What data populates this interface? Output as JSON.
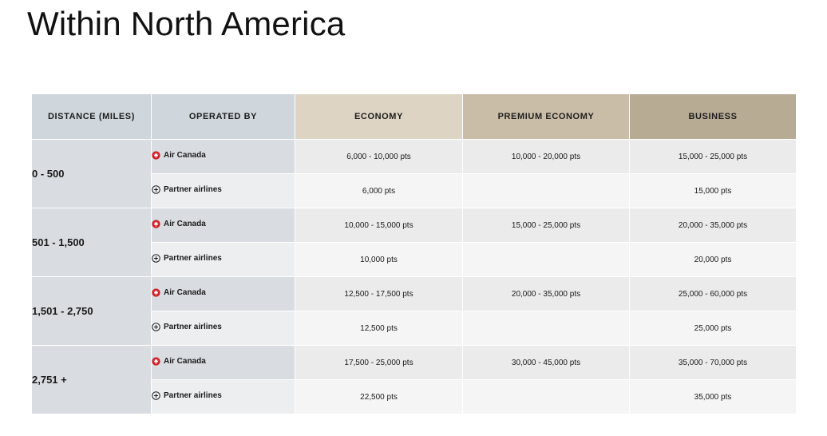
{
  "title": "Within North America",
  "colors": {
    "header_distance": "#cfd6dc",
    "header_operated": "#cfd6dc",
    "header_economy": "#ddd4c3",
    "header_premium": "#c9bda8",
    "header_business": "#b7ab94",
    "air_canada_red": "#d11f26"
  },
  "headers": {
    "distance": "DISTANCE (MILES)",
    "operated_by": "OPERATED BY",
    "economy": "ECONOMY",
    "premium_economy": "PREMIUM ECONOMY",
    "business": "BUSINESS"
  },
  "groups": [
    {
      "distance": "0 - 500",
      "air_canada": {
        "label": "Air Canada",
        "icon": "air-canada-maple-leaf-icon",
        "economy": "6,000 - 10,000 pts",
        "premium_economy": "10,000 - 20,000 pts",
        "business": "15,000 - 25,000 pts"
      },
      "partner": {
        "label": "Partner airlines",
        "icon": "partner-plus-circle-icon",
        "economy": "6,000 pts",
        "premium_economy": "",
        "business": "15,000 pts"
      }
    },
    {
      "distance": "501 - 1,500",
      "air_canada": {
        "label": "Air Canada",
        "icon": "air-canada-maple-leaf-icon",
        "economy": "10,000 - 15,000 pts",
        "premium_economy": "15,000 - 25,000 pts",
        "business": "20,000 - 35,000 pts"
      },
      "partner": {
        "label": "Partner airlines",
        "icon": "partner-plus-circle-icon",
        "economy": "10,000 pts",
        "premium_economy": "",
        "business": "20,000 pts"
      }
    },
    {
      "distance": "1,501 - 2,750",
      "air_canada": {
        "label": "Air Canada",
        "icon": "air-canada-maple-leaf-icon",
        "economy": "12,500 - 17,500 pts",
        "premium_economy": "20,000 - 35,000 pts",
        "business": "25,000 - 60,000 pts"
      },
      "partner": {
        "label": "Partner airlines",
        "icon": "partner-plus-circle-icon",
        "economy": "12,500 pts",
        "premium_economy": "",
        "business": "25,000 pts"
      }
    },
    {
      "distance": "2,751 +",
      "air_canada": {
        "label": "Air Canada",
        "icon": "air-canada-maple-leaf-icon",
        "economy": "17,500 - 25,000 pts",
        "premium_economy": "30,000 - 45,000 pts",
        "business": "35,000 - 70,000 pts"
      },
      "partner": {
        "label": "Partner airlines",
        "icon": "partner-plus-circle-icon",
        "economy": "22,500 pts",
        "premium_economy": "",
        "business": "35,000 pts"
      }
    }
  ]
}
